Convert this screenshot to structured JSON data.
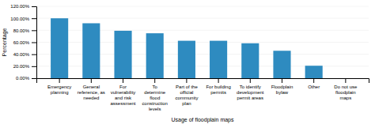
{
  "chart_data": {
    "type": "bar",
    "categories": [
      "Emergency\nplanning",
      "General\nreference, as\nneeded",
      "For\nvulnerability\nand risk\nassessment",
      "To\ndetermine\nflood\nconstruction\nlevels",
      "Part of the\nofficial\ncommunity\nplan",
      "For building\npermits",
      "To identify\ndevelopment\npermit areas",
      "Floodplain\nbylaw",
      "Other",
      "Do not use\nfloodplain\nmaps"
    ],
    "values": [
      100.0,
      91.7,
      79.2,
      75.0,
      62.5,
      62.5,
      58.3,
      45.8,
      20.8,
      0.0
    ],
    "color": "#2e8bc0",
    "xlabel": "Usage of floodplain maps",
    "ylabel": "Percentage",
    "ylim": [
      0,
      120
    ],
    "yticks": [
      {
        "value": 0,
        "label": "0.00%"
      },
      {
        "value": 20,
        "label": "20.00%"
      },
      {
        "value": 40,
        "label": "40.00%"
      },
      {
        "value": 60,
        "label": "60.00%"
      },
      {
        "value": 80,
        "label": "80.00%"
      },
      {
        "value": 100,
        "label": "100.00%"
      },
      {
        "value": 120,
        "label": "120.00%"
      }
    ],
    "grid": true
  }
}
